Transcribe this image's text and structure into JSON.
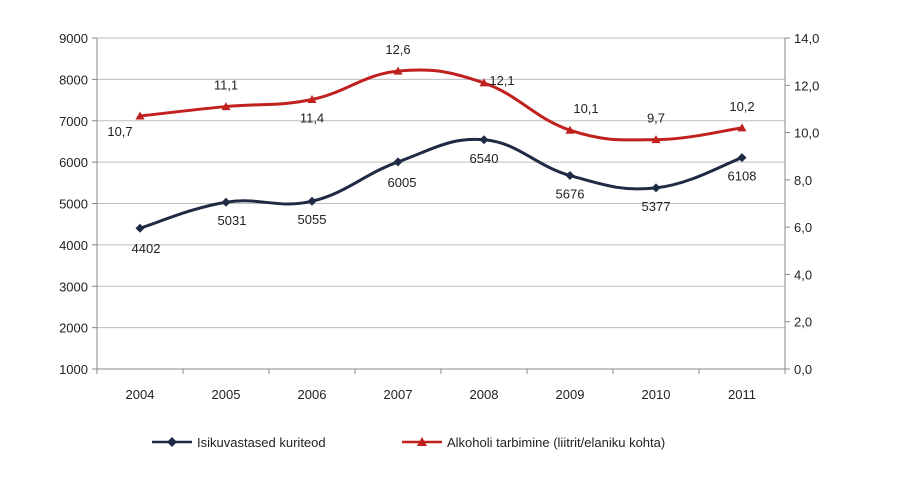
{
  "chart_data": {
    "type": "line",
    "categories": [
      "2004",
      "2005",
      "2006",
      "2007",
      "2008",
      "2009",
      "2010",
      "2011"
    ],
    "y_left": {
      "min": 1000,
      "max": 9000,
      "step": 1000,
      "ticks": [
        "1000",
        "2000",
        "3000",
        "4000",
        "5000",
        "6000",
        "7000",
        "8000",
        "9000"
      ]
    },
    "y_right": {
      "min": 0,
      "max": 14,
      "step": 2,
      "ticks": [
        "0,0",
        "2,0",
        "4,0",
        "6,0",
        "8,0",
        "10,0",
        "12,0",
        "14,0"
      ]
    },
    "grid": true,
    "legend_position": "bottom",
    "series": [
      {
        "name": "Isikuvastased kuriteod",
        "axis": "left",
        "color": "#1f2a44",
        "marker": "diamond",
        "values": [
          4402,
          5031,
          5055,
          6005,
          6540,
          5676,
          5377,
          6108
        ],
        "labels": [
          "4402",
          "5031",
          "5055",
          "6005",
          "6540",
          "5676",
          "5377",
          "6108"
        ]
      },
      {
        "name": "Alkoholi tarbimine (liitrit/elaniku kohta)",
        "axis": "right",
        "color": "#c0211f",
        "marker": "triangle",
        "values": [
          10.7,
          11.1,
          11.4,
          12.6,
          12.1,
          10.1,
          9.7,
          10.2
        ],
        "labels": [
          "10,7",
          "11,1",
          "11,4",
          "12,6",
          "12,1",
          "10,1",
          "9,7",
          "10,2"
        ]
      }
    ]
  }
}
